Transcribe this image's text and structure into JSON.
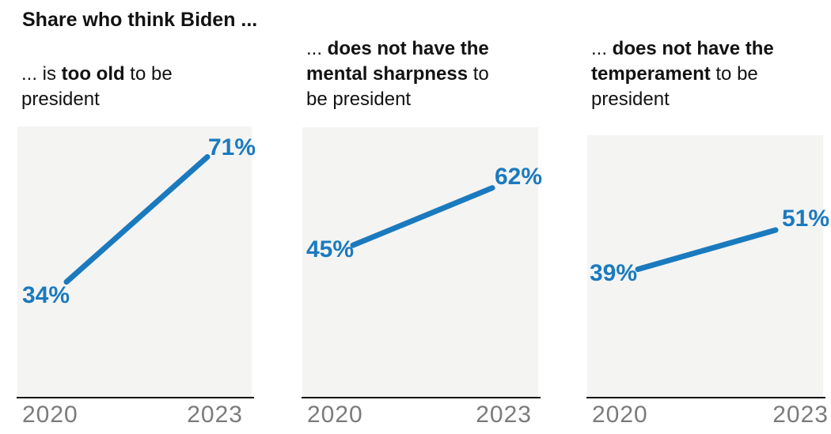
{
  "title": "Share who think Biden ...",
  "colors": {
    "line_blue": "#1b7abe",
    "plot_background": "#f4f4f3",
    "axis_line": "#121212",
    "axis_label_gray": "#7b7b7b",
    "text": "#121212"
  },
  "x_axis": {
    "start_label": "2020",
    "end_label": "2023"
  },
  "panels": [
    {
      "subtitle_prefix": "... is ",
      "subtitle_bold": "too old",
      "subtitle_suffix": " to be president",
      "start_label": "34%",
      "end_label": "71%"
    },
    {
      "subtitle_prefix": "... ",
      "subtitle_bold": "does not have the mental sharpness",
      "subtitle_suffix": " to be president",
      "start_label": "45%",
      "end_label": "62%"
    },
    {
      "subtitle_prefix": "... ",
      "subtitle_bold": "does not have the temperament",
      "subtitle_suffix": " to be president",
      "start_label": "39%",
      "end_label": "51%"
    }
  ],
  "chart_data": [
    {
      "type": "line",
      "title": "Share who think Biden is too old to be president",
      "x": [
        "2020",
        "2023"
      ],
      "values": [
        34,
        71
      ],
      "point_labels": [
        "34%",
        "71%"
      ],
      "unit": "%",
      "ylim": [
        0,
        80
      ],
      "xlabel": "",
      "ylabel": "",
      "grid": false,
      "legend": "none",
      "line_color": "#1b7abe"
    },
    {
      "type": "line",
      "title": "Share who think Biden does not have the mental sharpness to be president",
      "x": [
        "2020",
        "2023"
      ],
      "values": [
        45,
        62
      ],
      "point_labels": [
        "45%",
        "62%"
      ],
      "unit": "%",
      "ylim": [
        0,
        80
      ],
      "xlabel": "",
      "ylabel": "",
      "grid": false,
      "legend": "none",
      "line_color": "#1b7abe"
    },
    {
      "type": "line",
      "title": "Share who think Biden does not have the temperament to be president",
      "x": [
        "2020",
        "2023"
      ],
      "values": [
        39,
        51
      ],
      "point_labels": [
        "39%",
        "51%"
      ],
      "unit": "%",
      "ylim": [
        0,
        80
      ],
      "xlabel": "",
      "ylabel": "",
      "grid": false,
      "legend": "none",
      "line_color": "#1b7abe"
    }
  ]
}
